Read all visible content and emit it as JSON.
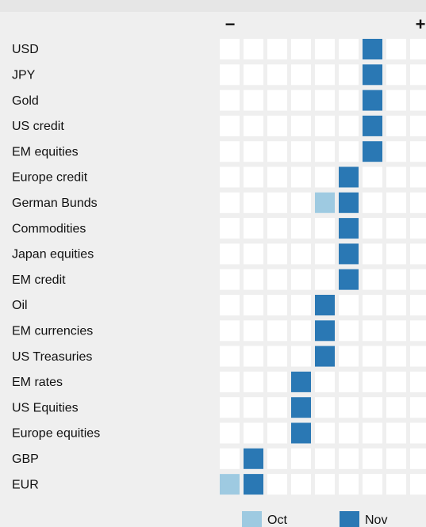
{
  "chart_data": {
    "type": "position-grid",
    "scale_labels": {
      "low": "−",
      "high": "+"
    },
    "categories": [
      "USD",
      "JPY",
      "Gold",
      "US credit",
      "EM equities",
      "Europe credit",
      "German Bunds",
      "Commodities",
      "Japan equities",
      "EM credit",
      "Oil",
      "EM currencies",
      "US Treasuries",
      "EM rates",
      "US Equities",
      "Europe equities",
      "GBP",
      "EUR"
    ],
    "xlim": [
      -4.5,
      4.5
    ],
    "series": [
      {
        "name": "Oct",
        "color": "#9ecae1",
        "values": [
          null,
          null,
          null,
          null,
          null,
          null,
          0,
          null,
          null,
          null,
          null,
          null,
          null,
          null,
          null,
          null,
          null,
          -4
        ]
      },
      {
        "name": "Nov",
        "color": "#2a78b4",
        "values": [
          2,
          2,
          2,
          2,
          2,
          1,
          1,
          1,
          1,
          1,
          0,
          0,
          0,
          -1,
          -1,
          -1,
          -3,
          -3
        ]
      }
    ]
  }
}
